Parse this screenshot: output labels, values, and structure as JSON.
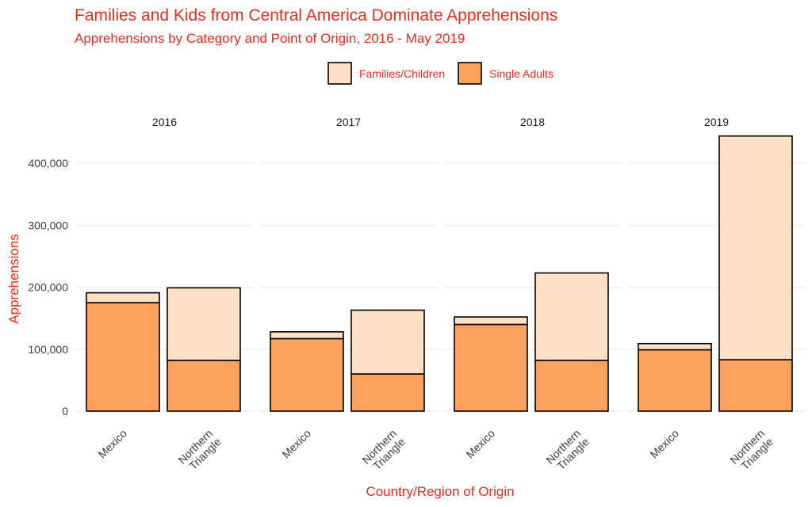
{
  "chart_data": {
    "type": "bar",
    "stacked": true,
    "title": "Families and Kids from Central America Dominate Apprehensions",
    "subtitle": "Apprehensions by Category and Point of Origin, 2016 - May 2019",
    "xlabel": "Country/Region of Origin",
    "ylabel": "Apprehensions",
    "ylim": [
      0,
      450000
    ],
    "yticks": [
      0,
      100000,
      200000,
      300000,
      400000
    ],
    "ytick_labels": [
      "0",
      "100,000",
      "200,000",
      "300,000",
      "400,000"
    ],
    "legend_position": "top",
    "grid": true,
    "categories": [
      "Mexico",
      "Northern Triangle"
    ],
    "category_labels": [
      [
        "Mexico"
      ],
      [
        "Northern",
        "Triangle"
      ]
    ],
    "series": [
      {
        "name": "Single Adults",
        "color": "#fca15e"
      },
      {
        "name": "Families/Children",
        "color": "#fde0c5"
      }
    ],
    "legend_order": [
      "Families/Children",
      "Single Adults"
    ],
    "facets": [
      {
        "label": "2016",
        "values": {
          "Single Adults": [
            175000,
            82000
          ],
          "Families/Children": [
            16000,
            117000
          ]
        }
      },
      {
        "label": "2017",
        "values": {
          "Single Adults": [
            117000,
            60000
          ],
          "Families/Children": [
            11000,
            103000
          ]
        }
      },
      {
        "label": "2018",
        "values": {
          "Single Adults": [
            140000,
            82000
          ],
          "Families/Children": [
            12000,
            141000
          ]
        }
      },
      {
        "label": "2019",
        "values": {
          "Single Adults": [
            99000,
            83000
          ],
          "Families/Children": [
            10000,
            361000
          ]
        }
      }
    ]
  }
}
